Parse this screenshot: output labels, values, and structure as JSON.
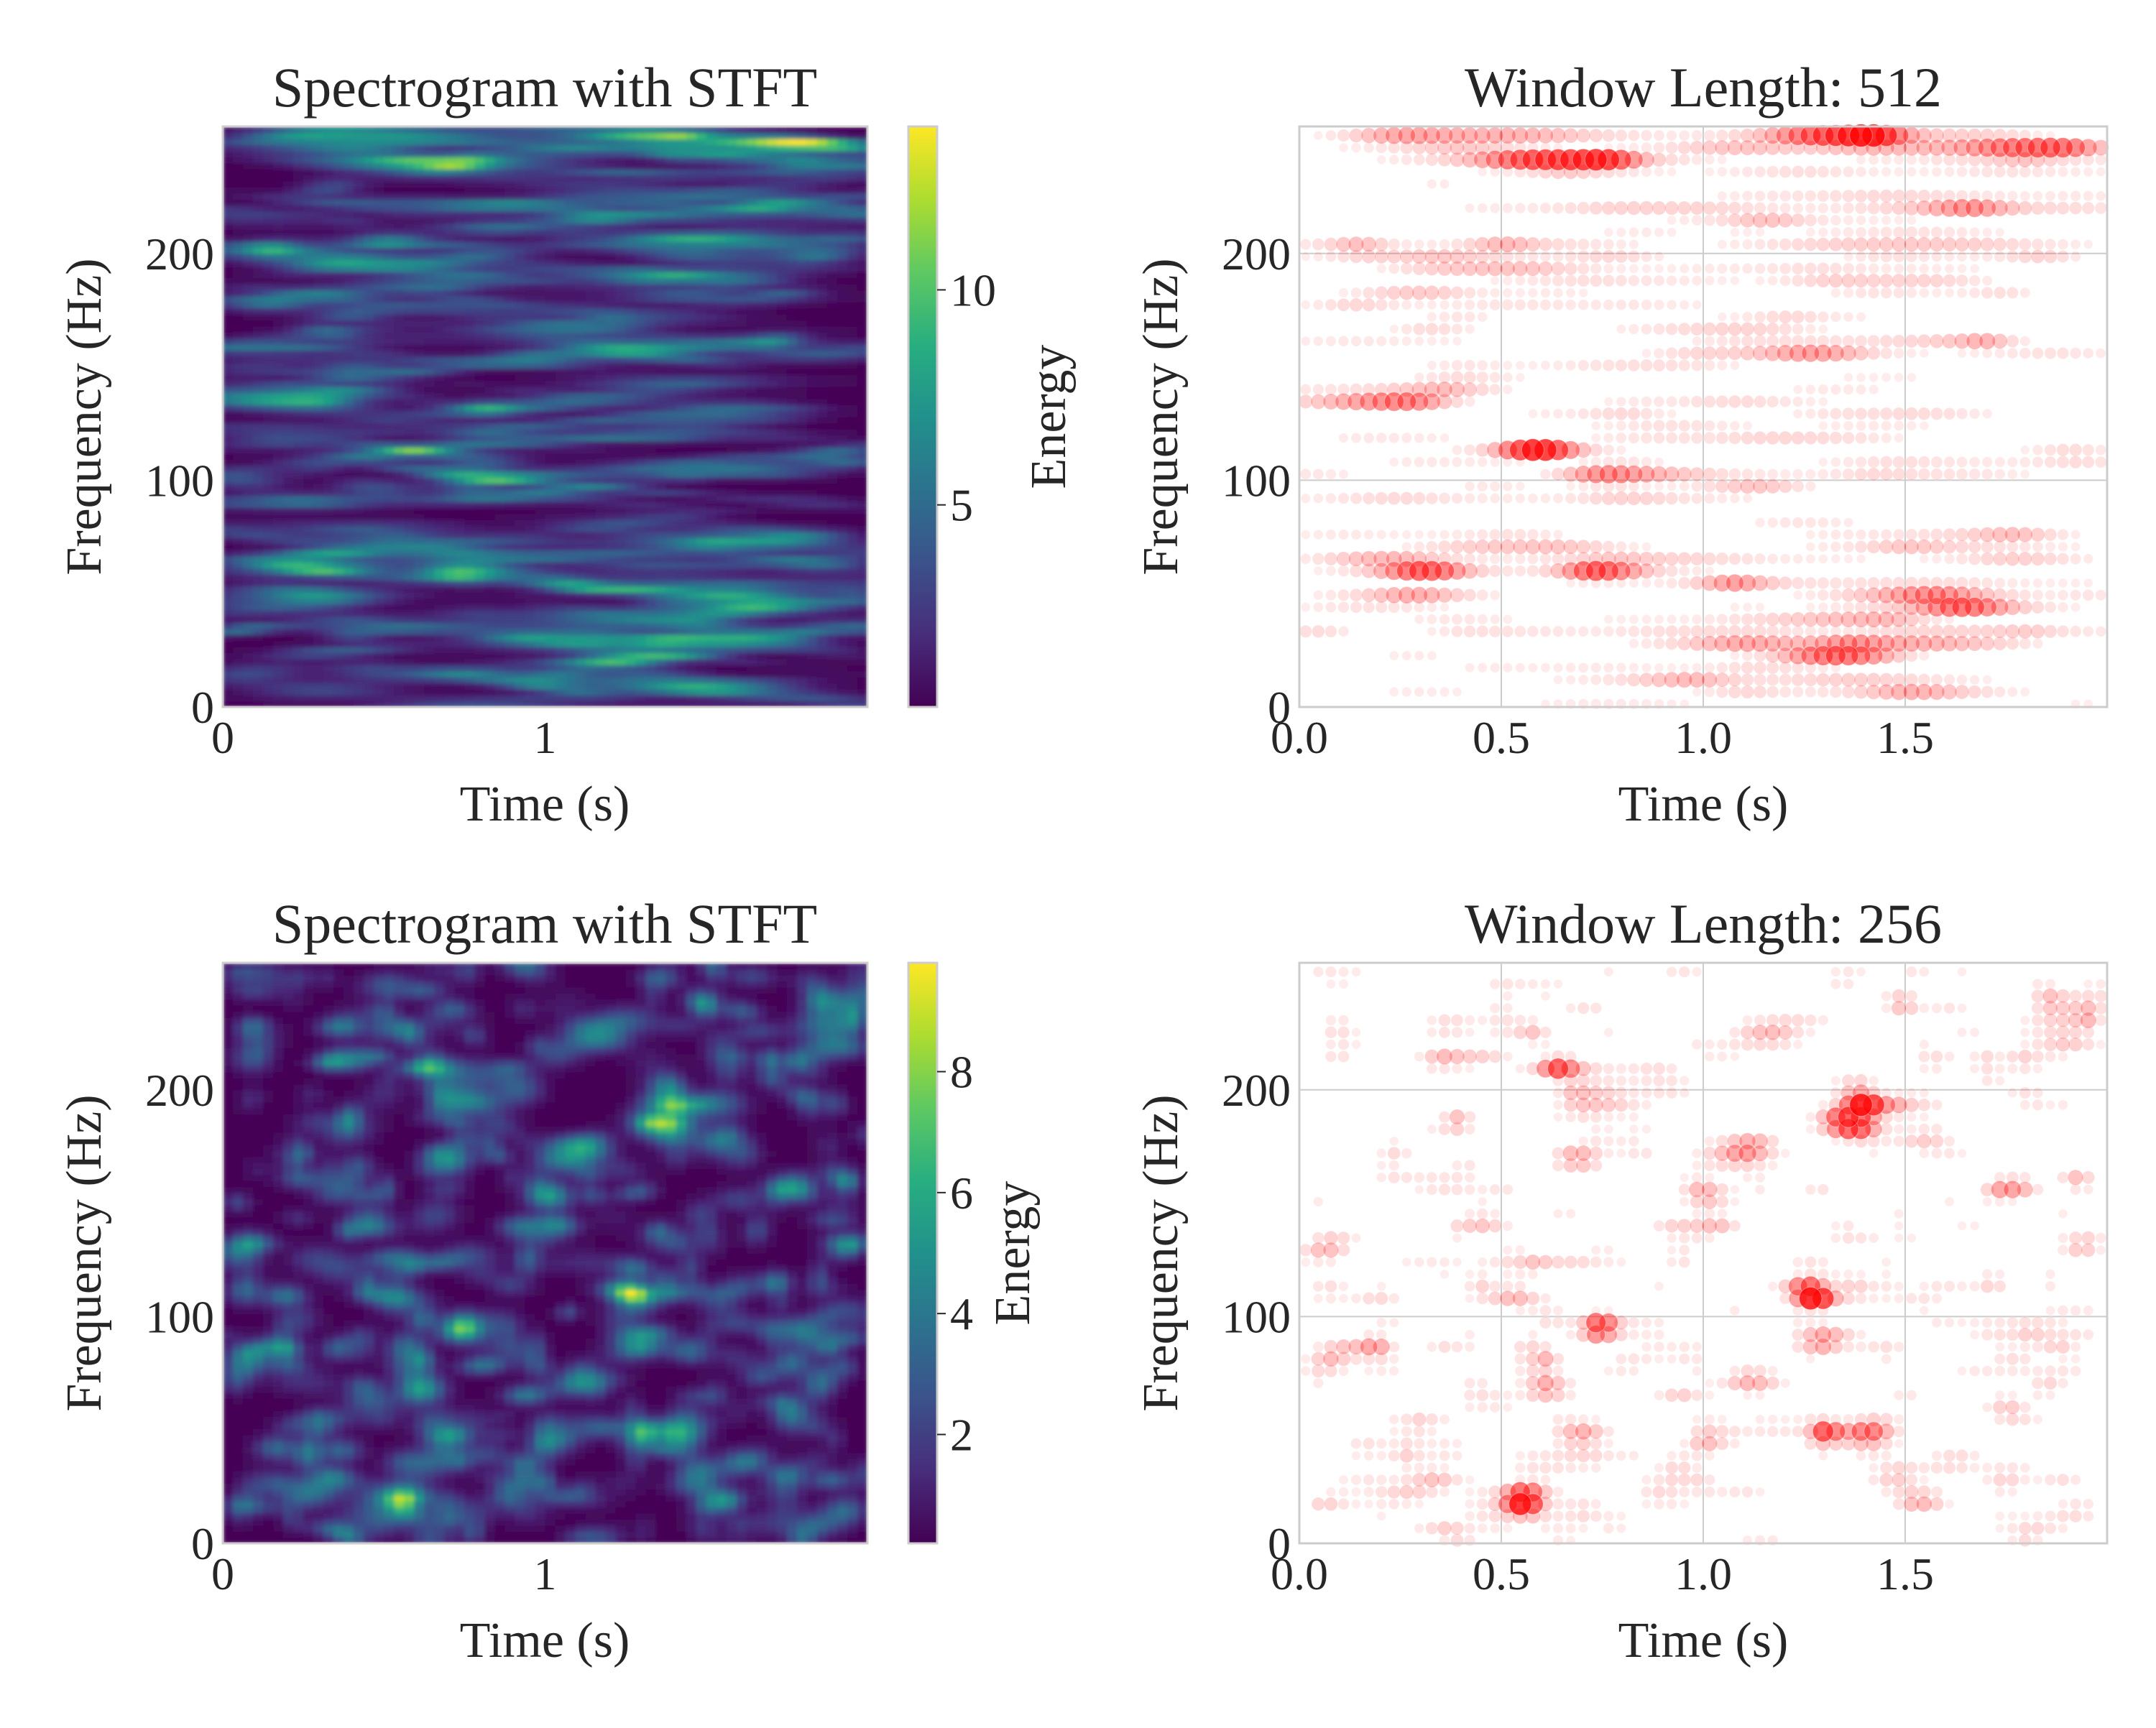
{
  "chart_data": [
    {
      "type": "heatmap",
      "title": "Spectrogram with STFT",
      "xlabel": "Time (s)",
      "ylabel": "Frequency (Hz)",
      "xlim": [
        0,
        2
      ],
      "ylim": [
        0,
        256
      ],
      "xticks": [
        0,
        1
      ],
      "xtick_labels": [
        "0",
        "1"
      ],
      "yticks": [
        0,
        100,
        200
      ],
      "ytick_labels": [
        "0",
        "100",
        "200"
      ],
      "colormap": "viridis",
      "colorbar": {
        "label": "Energy",
        "range": [
          0.3,
          13.8
        ],
        "ticks": [
          5,
          10
        ],
        "tick_labels": [
          "5",
          "10"
        ]
      },
      "grid": false,
      "pattern": "horizontally elongated streaks",
      "value_range": [
        0.3,
        13.8
      ]
    },
    {
      "type": "scatter",
      "title": "Window Length: 512",
      "xlabel": "Time (s)",
      "ylabel": "Frequency (Hz)",
      "xlim": [
        0,
        2
      ],
      "ylim": [
        0,
        256
      ],
      "xticks": [
        0,
        0.5,
        1.0,
        1.5
      ],
      "xtick_labels": [
        "0.0",
        "0.5",
        "1.0",
        "1.5"
      ],
      "yticks": [
        0,
        100,
        200
      ],
      "ytick_labels": [
        "0",
        "100",
        "200"
      ],
      "grid": true,
      "marker_color": "#ff0000",
      "marker_encoding": "size and opacity proportional to energy",
      "pattern": "horizontally elongated streaks"
    },
    {
      "type": "heatmap",
      "title": "Spectrogram with STFT",
      "xlabel": "Time (s)",
      "ylabel": "Frequency (Hz)",
      "xlim": [
        0,
        2
      ],
      "ylim": [
        0,
        256
      ],
      "xticks": [
        0,
        1
      ],
      "xtick_labels": [
        "0",
        "1"
      ],
      "yticks": [
        0,
        100,
        200
      ],
      "ytick_labels": [
        "0",
        "100",
        "200"
      ],
      "colormap": "viridis",
      "colorbar": {
        "label": "Energy",
        "range": [
          0.2,
          9.8
        ],
        "ticks": [
          2,
          4,
          6,
          8
        ],
        "tick_labels": [
          "2",
          "4",
          "6",
          "8"
        ]
      },
      "grid": false,
      "pattern": "short blob-like patches",
      "value_range": [
        0.2,
        9.8
      ]
    },
    {
      "type": "scatter",
      "title": "Window Length: 256",
      "xlabel": "Time (s)",
      "ylabel": "Frequency (Hz)",
      "xlim": [
        0,
        2
      ],
      "ylim": [
        0,
        256
      ],
      "xticks": [
        0,
        0.5,
        1.0,
        1.5
      ],
      "xtick_labels": [
        "0.0",
        "0.5",
        "1.0",
        "1.5"
      ],
      "yticks": [
        0,
        100,
        200
      ],
      "ytick_labels": [
        "0",
        "100",
        "200"
      ],
      "grid": true,
      "marker_color": "#ff0000",
      "marker_encoding": "size and opacity proportional to energy",
      "pattern": "short blob-like patches"
    }
  ]
}
